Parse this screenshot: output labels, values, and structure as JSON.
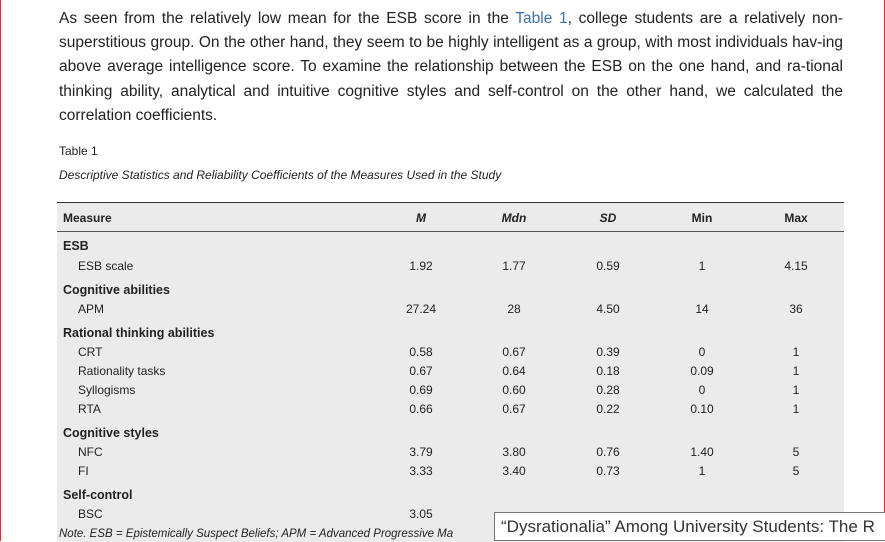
{
  "paragraph": {
    "before_link": "As seen from the relatively low mean for the ESB score in the ",
    "link": "Table 1",
    "after_link": ", college students are a relatively non-superstitious group. On the other hand, they seem to be highly intelligent as a group, with most individuals hav-ing above average intelligence score. To examine the relationship between the ESB on the one hand, and ra-tional thinking ability, analytical and intuitive cognitive styles and self-control on the other hand, we calculated the correlation coefficients."
  },
  "table": {
    "label": "Table 1",
    "caption": "Descriptive Statistics and Reliability Coefficients of the Measures Used in the Study",
    "headers": {
      "measure": "Measure",
      "m": "M",
      "mdn": "Mdn",
      "sd": "SD",
      "min": "Min",
      "max": "Max"
    },
    "groups": [
      {
        "name": "ESB",
        "rows": [
          {
            "label": "ESB scale",
            "m": "1.92",
            "mdn": "1.77",
            "sd": "0.59",
            "min": "1",
            "max": "4.15"
          }
        ]
      },
      {
        "name": "Cognitive abilities",
        "rows": [
          {
            "label": "APM",
            "m": "27.24",
            "mdn": "28",
            "sd": "4.50",
            "min": "14",
            "max": "36"
          }
        ]
      },
      {
        "name": "Rational thinking abilities",
        "rows": [
          {
            "label": "CRT",
            "m": "0.58",
            "mdn": "0.67",
            "sd": "0.39",
            "min": "0",
            "max": "1"
          },
          {
            "label": "Rationality tasks",
            "m": "0.67",
            "mdn": "0.64",
            "sd": "0.18",
            "min": "0.09",
            "max": "1"
          },
          {
            "label": "Syllogisms",
            "m": "0.69",
            "mdn": "0.60",
            "sd": "0.28",
            "min": "0",
            "max": "1"
          },
          {
            "label": "RTA",
            "m": "0.66",
            "mdn": "0.67",
            "sd": "0.22",
            "min": "0.10",
            "max": "1"
          }
        ]
      },
      {
        "name": "Cognitive styles",
        "rows": [
          {
            "label": "NFC",
            "m": "3.79",
            "mdn": "3.80",
            "sd": "0.76",
            "min": "1.40",
            "max": "5"
          },
          {
            "label": "FI",
            "m": "3.33",
            "mdn": "3.40",
            "sd": "0.73",
            "min": "1",
            "max": "5"
          }
        ]
      },
      {
        "name": "Self-control",
        "rows": [
          {
            "label": "BSC",
            "m": "3.05",
            "mdn": "",
            "sd": "",
            "min": "",
            "max": ""
          }
        ]
      }
    ],
    "note": "Note. ESB = Epistemically Suspect Beliefs; APM = Advanced Progressive Ma"
  },
  "tooltip": "“Dysrationalia” Among University Students: The R"
}
